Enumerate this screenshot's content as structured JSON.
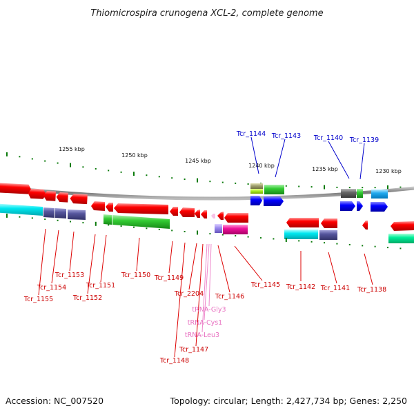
{
  "title": "Thiomicrospira crunogena XCL-2, complete genome",
  "accession": "Accession: NC_007520",
  "summary": "Topology: circular; Length: 2,427,734 bp; Genes: 2,250",
  "ruler_labels": [
    "1255 kbp",
    "1250 kbp",
    "1245 kbp",
    "1240 kbp",
    "1235 kbp",
    "1230 kbp"
  ],
  "top_labels": [
    "Tcr_1144",
    "Tcr_1143",
    "Tcr_1140",
    "Tcr_1139"
  ],
  "bottom_labels": [
    "Tcr_1155",
    "Tcr_1154",
    "Tcr_1153",
    "Tcr_1152",
    "Tcr_1151",
    "Tcr_1150",
    "Tcr_1149",
    "Tcr_2204",
    "Tcr_1146",
    "Tcr_1145",
    "Tcr_1142",
    "Tcr_1141",
    "Tcr_1138",
    "Tcr_1147",
    "Tcr_1148"
  ],
  "trna_labels": [
    "tRNA-Gly3",
    "tRNA-Cys1",
    "tRNA-Leu3"
  ],
  "colors": {
    "gene_red": "#ff0000",
    "label_red": "#cc0000",
    "label_blue": "#0000cc",
    "trna_pink": "#e870c0",
    "tick_green": "#0a7a0a"
  }
}
